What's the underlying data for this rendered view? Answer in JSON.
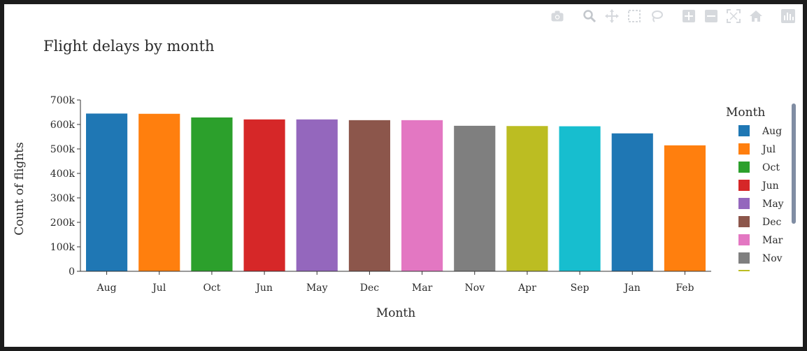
{
  "chart_data": {
    "type": "bar",
    "title": "Flight delays by month",
    "xlabel": "Month",
    "ylabel": "Count of flights",
    "ylim": [
      0,
      700000
    ],
    "yticks": [
      0,
      100000,
      200000,
      300000,
      400000,
      500000,
      600000,
      700000
    ],
    "ytick_labels": [
      "0",
      "100k",
      "200k",
      "300k",
      "400k",
      "500k",
      "600k",
      "700k"
    ],
    "categories": [
      "Aug",
      "Jul",
      "Oct",
      "Jun",
      "May",
      "Dec",
      "Mar",
      "Nov",
      "Apr",
      "Sep",
      "Jan",
      "Feb"
    ],
    "values": [
      646000,
      645000,
      630000,
      622000,
      622000,
      619000,
      619000,
      596000,
      595000,
      594000,
      565000,
      516000
    ],
    "colors": [
      "#1f77b4",
      "#ff7f0e",
      "#2ca02c",
      "#d62728",
      "#9467bd",
      "#8c564b",
      "#e377c2",
      "#7f7f7f",
      "#bcbd22",
      "#17becf",
      "#1f77b4",
      "#ff7f0e"
    ],
    "grid": false,
    "legend": {
      "title": "Month",
      "placement": "right",
      "items": [
        "Aug",
        "Jul",
        "Oct",
        "Jun",
        "May",
        "Dec",
        "Mar",
        "Nov"
      ],
      "colors": [
        "#1f77b4",
        "#ff7f0e",
        "#2ca02c",
        "#d62728",
        "#9467bd",
        "#8c564b",
        "#e377c2",
        "#7f7f7f"
      ],
      "truncated_item_color": "#bcbd22"
    }
  },
  "toolbar": {
    "icons": [
      "camera-icon",
      "zoom-icon",
      "pan-icon",
      "box-select-icon",
      "lasso-select-icon",
      "zoom-in-icon",
      "zoom-out-icon",
      "autoscale-icon",
      "reset-axes-icon",
      "plotly-logo-icon"
    ]
  }
}
